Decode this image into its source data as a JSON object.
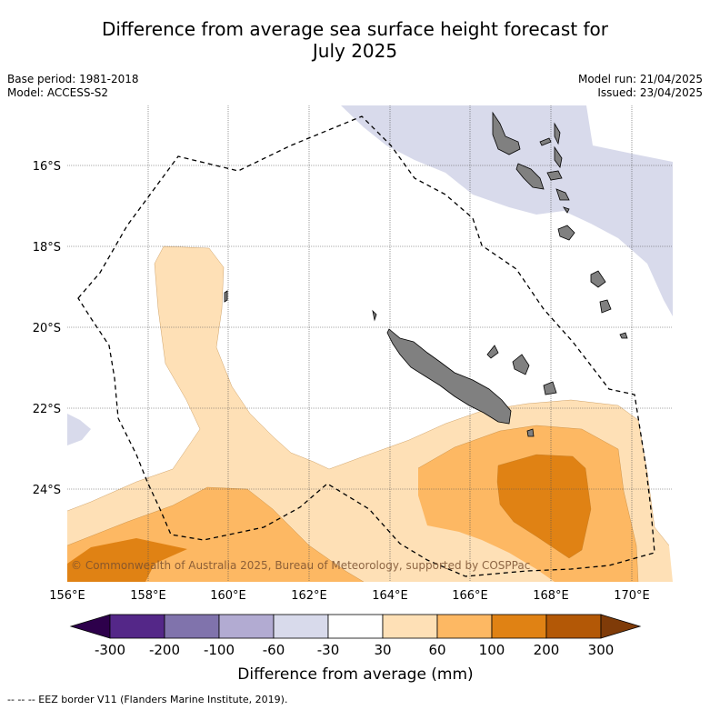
{
  "header": {
    "title_line1": "Difference from average sea surface height forecast for",
    "title_line2": "July 2025"
  },
  "meta": {
    "base_period": "Base period: 1981-2018",
    "model": "Model: ACCESS-S2",
    "model_run": "Model run: 21/04/2025",
    "issued": "Issued: 23/04/2025"
  },
  "map": {
    "lat_labels": [
      "16°S",
      "18°S",
      "20°S",
      "22°S",
      "24°S"
    ],
    "lon_labels": [
      "156°E",
      "158°E",
      "160°E",
      "162°E",
      "164°E",
      "166°E",
      "168°E",
      "170°E"
    ],
    "copyright": "© Commonwealth of Australia 2025, Bureau of Meteorology, supported by COSPPac",
    "land_color": "#808080",
    "eez_style": "dashed"
  },
  "colorbar": {
    "title": "Difference from average (mm)",
    "tick_labels": [
      "-300",
      "-200",
      "-100",
      "-60",
      "-30",
      "30",
      "60",
      "100",
      "200",
      "300"
    ],
    "colors": {
      "below_-300": "#2d004b",
      "-300_-200": "#542788",
      "-200_-100": "#8073ac",
      "-100_-60": "#b2abd2",
      "-60_-30": "#d8daeb",
      "-30_30": "#ffffff",
      "30_60": "#fee0b6",
      "60_100": "#fdb863",
      "100_200": "#e08214",
      "200_300": "#b35806",
      "above_300": "#7f3b08"
    }
  },
  "footer": {
    "eez_legend": "--  --  -- EEZ border V11 (Flanders Marine Institute, 2019)."
  }
}
